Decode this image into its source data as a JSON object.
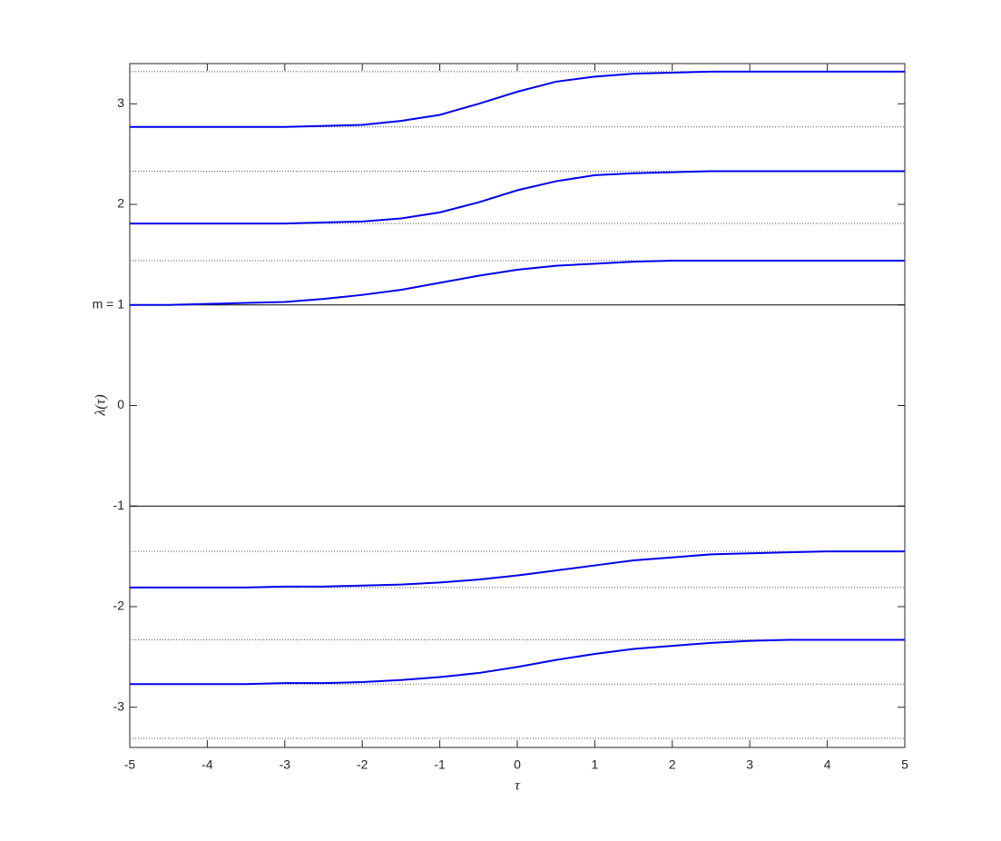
{
  "chart_data": {
    "type": "line",
    "x_label": "τ",
    "y_label": "λ(τ)",
    "x": [
      -5,
      -4.5,
      -4,
      -3.5,
      -3,
      -2.5,
      -2,
      -1.5,
      -1,
      -0.5,
      0,
      0.5,
      1,
      1.5,
      2,
      2.5,
      3,
      3.5,
      4,
      4.5,
      5
    ],
    "series": [
      {
        "color": "#0000ee",
        "values": [
          2.77,
          2.77,
          2.77,
          2.77,
          2.77,
          2.78,
          2.79,
          2.83,
          2.89,
          3.0,
          3.12,
          3.22,
          3.27,
          3.3,
          3.31,
          3.32,
          3.32,
          3.32,
          3.32,
          3.32,
          3.32
        ]
      },
      {
        "color": "#0000ee",
        "values": [
          1.81,
          1.81,
          1.81,
          1.81,
          1.81,
          1.82,
          1.83,
          1.86,
          1.92,
          2.02,
          2.14,
          2.23,
          2.29,
          2.31,
          2.32,
          2.33,
          2.33,
          2.33,
          2.33,
          2.33,
          2.33
        ]
      },
      {
        "color": "#0000ee",
        "values": [
          1.0,
          1.0,
          1.01,
          1.02,
          1.03,
          1.06,
          1.1,
          1.15,
          1.22,
          1.29,
          1.35,
          1.39,
          1.41,
          1.43,
          1.44,
          1.44,
          1.44,
          1.44,
          1.44,
          1.44,
          1.44
        ]
      },
      {
        "color": "#0000ee",
        "values": [
          -1.81,
          -1.81,
          -1.81,
          -1.81,
          -1.8,
          -1.8,
          -1.79,
          -1.78,
          -1.76,
          -1.73,
          -1.69,
          -1.64,
          -1.59,
          -1.54,
          -1.51,
          -1.48,
          -1.47,
          -1.46,
          -1.45,
          -1.45,
          -1.45
        ]
      },
      {
        "color": "#0000ee",
        "values": [
          -2.77,
          -2.77,
          -2.77,
          -2.77,
          -2.76,
          -2.76,
          -2.75,
          -2.73,
          -2.7,
          -2.66,
          -2.6,
          -2.53,
          -2.47,
          -2.42,
          -2.39,
          -2.36,
          -2.34,
          -2.33,
          -2.33,
          -2.33,
          -2.33
        ]
      }
    ],
    "hlines": [
      {
        "y": 1,
        "style": "solid",
        "color": "#000000"
      },
      {
        "y": -1,
        "style": "solid",
        "color": "#000000"
      },
      {
        "y": 3.32,
        "style": "dotted",
        "color": "#555555"
      },
      {
        "y": 2.77,
        "style": "dotted",
        "color": "#555555"
      },
      {
        "y": 2.33,
        "style": "dotted",
        "color": "#555555"
      },
      {
        "y": 1.81,
        "style": "dotted",
        "color": "#555555"
      },
      {
        "y": 1.44,
        "style": "dotted",
        "color": "#555555"
      },
      {
        "y": -1.45,
        "style": "dotted",
        "color": "#555555"
      },
      {
        "y": -1.81,
        "style": "dotted",
        "color": "#555555"
      },
      {
        "y": -2.33,
        "style": "dotted",
        "color": "#555555"
      },
      {
        "y": -2.77,
        "style": "dotted",
        "color": "#555555"
      },
      {
        "y": -3.31,
        "style": "dotted",
        "color": "#555555"
      }
    ],
    "xlim": [
      -5,
      5
    ],
    "ylim": [
      -3.4,
      3.4
    ],
    "xticks": [
      -5,
      -4,
      -3,
      -2,
      -1,
      0,
      1,
      2,
      3,
      4,
      5
    ],
    "yticks": [
      -3,
      -2,
      -1,
      0,
      {
        "value": 1,
        "label": "m = 1"
      },
      2,
      3
    ],
    "grid": false
  }
}
